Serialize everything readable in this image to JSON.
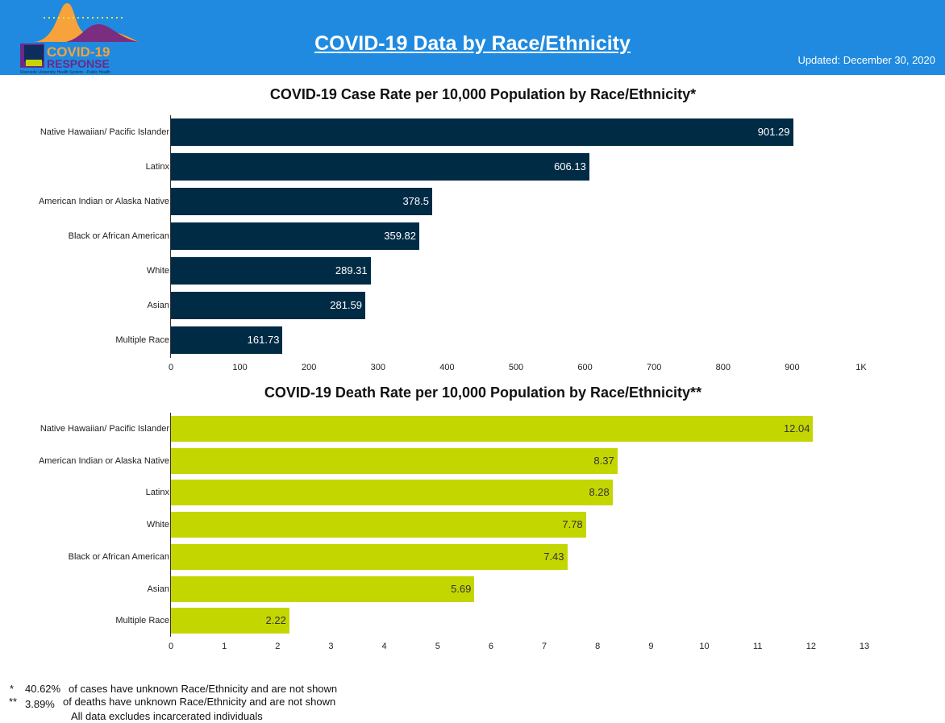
{
  "header": {
    "title": "COVID-19 Data by Race/Ethnicity",
    "updated": "Updated: December 30, 2020",
    "logo_text": "COVID-19 RESPONSE",
    "logo_subtext": "Riverside University Health System - Public Health"
  },
  "colors": {
    "header": "#1f8ae0",
    "case_bar": "#002b45",
    "death_bar": "#c4d600"
  },
  "chart_data": [
    {
      "type": "bar",
      "orientation": "horizontal",
      "title": "COVID-19 Case Rate per 10,000 Population by Race/Ethnicity*",
      "categories": [
        "Native Hawaiian/ Pacific Islander",
        "Latinx",
        "American Indian or Alaska Native",
        "Black or African American",
        "White",
        "Asian",
        "Multiple Race"
      ],
      "values": [
        901.29,
        606.13,
        378.5,
        359.82,
        289.31,
        281.59,
        161.73
      ],
      "labels": [
        "901.29",
        "606.13",
        "378.5",
        "359.82",
        "289.31",
        "281.59",
        "161.73"
      ],
      "xlim": [
        0,
        1000
      ],
      "ticks": [
        "0",
        "100",
        "200",
        "300",
        "400",
        "500",
        "600",
        "700",
        "800",
        "900",
        "1K"
      ]
    },
    {
      "type": "bar",
      "orientation": "horizontal",
      "title": "COVID-19 Death Rate per 10,000 Population by Race/Ethnicity**",
      "categories": [
        "Native Hawaiian/ Pacific Islander",
        "American Indian or Alaska Native",
        "Latinx",
        "White",
        "Black or African American",
        "Asian",
        "Multiple Race"
      ],
      "values": [
        12.04,
        8.37,
        8.28,
        7.78,
        7.43,
        5.69,
        2.22
      ],
      "labels": [
        "12.04",
        "8.37",
        "8.28",
        "7.78",
        "7.43",
        "5.69",
        "2.22"
      ],
      "xlim": [
        0,
        13
      ],
      "ticks": [
        "0",
        "1",
        "2",
        "3",
        "4",
        "5",
        "6",
        "7",
        "8",
        "9",
        "10",
        "11",
        "12",
        "13"
      ]
    }
  ],
  "footnotes": {
    "star1": "*",
    "pct1": "40.62%",
    "text1": "of cases have unknown Race/Ethnicity and are not shown",
    "star2": "**",
    "pct2": "3.89%",
    "text2": "of deaths have unknown Race/Ethnicity and are not shown",
    "text3": "All data excludes incarcerated individuals"
  }
}
